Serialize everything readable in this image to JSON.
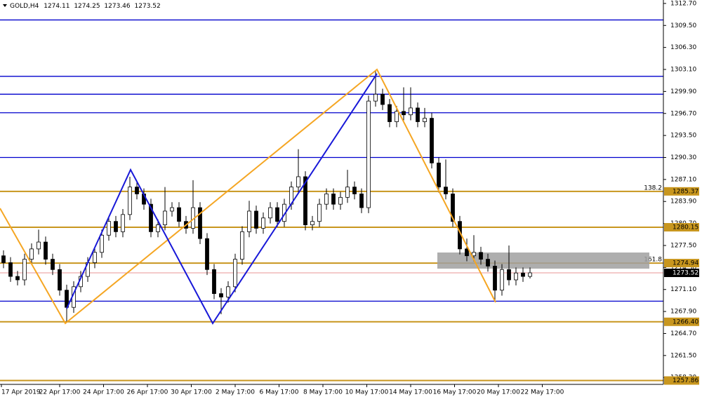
{
  "chart_data": {
    "type": "candlestick",
    "symbol": "GOLD,H4",
    "ohlc": [
      1274.11,
      1274.25,
      1273.46,
      1273.52
    ],
    "ylim": [
      1257.3,
      1313.2
    ],
    "yticks": [
      {
        "value": 1312.7,
        "label": "1312.70"
      },
      {
        "value": 1309.5,
        "label": "1309.50"
      },
      {
        "value": 1306.3,
        "label": "1306.30"
      },
      {
        "value": 1303.1,
        "label": "1303.10"
      },
      {
        "value": 1299.9,
        "label": "1299.90"
      },
      {
        "value": 1296.7,
        "label": "1296.70"
      },
      {
        "value": 1293.5,
        "label": "1293.50"
      },
      {
        "value": 1290.3,
        "label": "1290.30"
      },
      {
        "value": 1287.1,
        "label": "1287.10"
      },
      {
        "value": 1283.9,
        "label": "1283.90"
      },
      {
        "value": 1280.7,
        "label": "1280.70"
      },
      {
        "value": 1277.5,
        "label": "1277.50"
      },
      {
        "value": 1274.3,
        "label": "1274.30"
      },
      {
        "value": 1271.1,
        "label": "1271.10"
      },
      {
        "value": 1267.9,
        "label": "1267.90"
      },
      {
        "value": 1264.7,
        "label": "1264.70"
      },
      {
        "value": 1261.5,
        "label": "1261.50"
      },
      {
        "value": 1258.3,
        "label": "1258.30"
      }
    ],
    "x_labels": [
      "17 Apr 2019",
      "22 Apr 17:00",
      "24 Apr 17:00",
      "26 Apr 17:00",
      "30 Apr 17:00",
      "2 May 17:00",
      "6 May 17:00",
      "8 May 17:00",
      "10 May 17:00",
      "14 May 17:00",
      "16 May 17:00",
      "20 May 17:00",
      "22 May 17:00"
    ],
    "levels": [
      {
        "value": 1310.3,
        "color": "#0000cd"
      },
      {
        "value": 1302.1,
        "color": "#0000cd"
      },
      {
        "value": 1299.5,
        "color": "#0000cd"
      },
      {
        "value": 1296.8,
        "color": "#0000cd"
      },
      {
        "value": 1290.3,
        "color": "#0000cd"
      },
      {
        "value": 1269.4,
        "color": "#0000cd"
      },
      {
        "value": 1285.37,
        "color": "#c8961e",
        "fib": "138.2"
      },
      {
        "value": 1280.15,
        "color": "#c8961e"
      },
      {
        "value": 1274.94,
        "color": "#c8961e",
        "fib": "161.8"
      },
      {
        "value": 1266.4,
        "label": "1266.40",
        "color": "#c8961e"
      },
      {
        "value": 1257.86,
        "color": "#c8961e"
      }
    ],
    "current": 1273.52,
    "candles": [
      [
        1276,
        1276.8,
        1274.2,
        1275
      ],
      [
        1275,
        1275.8,
        1272.2,
        1273
      ],
      [
        1273,
        1273.8,
        1271.7,
        1272.5
      ],
      [
        1272.5,
        1276.3,
        1271.7,
        1275.5
      ],
      [
        1275.5,
        1277.8,
        1274.7,
        1277
      ],
      [
        1277,
        1279.8,
        1276.2,
        1278
      ],
      [
        1278,
        1278.8,
        1274.7,
        1275.5
      ],
      [
        1275.5,
        1276.3,
        1273.2,
        1274
      ],
      [
        1274,
        1274.8,
        1270.2,
        1271
      ],
      [
        1271,
        1271.8,
        1266.4,
        1268.5
      ],
      [
        1268.5,
        1272.3,
        1267.7,
        1271.5
      ],
      [
        1271.5,
        1273.8,
        1270.7,
        1273
      ],
      [
        1273,
        1275.8,
        1272.2,
        1275
      ],
      [
        1275,
        1277.3,
        1274.2,
        1276.5
      ],
      [
        1276.5,
        1279.8,
        1275.7,
        1279
      ],
      [
        1279,
        1281.8,
        1278.2,
        1281
      ],
      [
        1281,
        1281.8,
        1278.7,
        1279.5
      ],
      [
        1279.5,
        1282.8,
        1278.7,
        1282
      ],
      [
        1282,
        1287.5,
        1281.2,
        1286
      ],
      [
        1286,
        1286.8,
        1284.2,
        1285
      ],
      [
        1285,
        1285.8,
        1282.7,
        1283.5
      ],
      [
        1283.5,
        1284.3,
        1278.7,
        1279.5
      ],
      [
        1279.5,
        1281.3,
        1278.7,
        1280.5
      ],
      [
        1280.5,
        1286,
        1279.7,
        1282.5
      ],
      [
        1282.5,
        1283.8,
        1281.7,
        1283
      ],
      [
        1283,
        1283.8,
        1280.2,
        1281
      ],
      [
        1281,
        1281.8,
        1279.2,
        1280
      ],
      [
        1280,
        1287,
        1279.2,
        1283
      ],
      [
        1283,
        1283.8,
        1277.7,
        1278.5
      ],
      [
        1278.5,
        1279.3,
        1273.2,
        1274
      ],
      [
        1274,
        1274.8,
        1269.7,
        1270.5
      ],
      [
        1270.5,
        1271.3,
        1267.5,
        1270
      ],
      [
        1270,
        1272.3,
        1269.2,
        1271.5
      ],
      [
        1271.5,
        1276.3,
        1270.7,
        1275.5
      ],
      [
        1275.5,
        1280.3,
        1274.7,
        1279.5
      ],
      [
        1279.5,
        1284,
        1278.7,
        1282.5
      ],
      [
        1282.5,
        1283.3,
        1279.2,
        1280
      ],
      [
        1280,
        1282.3,
        1279.2,
        1281.5
      ],
      [
        1281.5,
        1283.8,
        1280.7,
        1283
      ],
      [
        1283,
        1283.8,
        1280.2,
        1281
      ],
      [
        1281,
        1284.3,
        1280.2,
        1283.5
      ],
      [
        1283.5,
        1286.8,
        1282.7,
        1286
      ],
      [
        1286,
        1291.5,
        1285.2,
        1287.5
      ],
      [
        1287.5,
        1288.3,
        1279.7,
        1280.5
      ],
      [
        1280.5,
        1281.8,
        1279.7,
        1281
      ],
      [
        1281,
        1284.3,
        1280.2,
        1283.5
      ],
      [
        1283.5,
        1285.8,
        1282.7,
        1285
      ],
      [
        1285,
        1285.8,
        1282.7,
        1283.5
      ],
      [
        1283.5,
        1285.3,
        1282.7,
        1284.5
      ],
      [
        1284.5,
        1288.5,
        1283.7,
        1286
      ],
      [
        1286,
        1286.8,
        1284.2,
        1285
      ],
      [
        1285,
        1285.8,
        1282.2,
        1283
      ],
      [
        1283,
        1299.3,
        1282.2,
        1298.5
      ],
      [
        1298.5,
        1303,
        1297.7,
        1299.5
      ],
      [
        1299.5,
        1300.3,
        1297.2,
        1298
      ],
      [
        1298,
        1298.8,
        1294.7,
        1295.5
      ],
      [
        1295.5,
        1297.8,
        1294.7,
        1297
      ],
      [
        1297,
        1300.5,
        1295.7,
        1296.5
      ],
      [
        1296.5,
        1300.5,
        1295.7,
        1297.5
      ],
      [
        1297.5,
        1298.3,
        1294.7,
        1295.5
      ],
      [
        1295.5,
        1297.5,
        1294.7,
        1296
      ],
      [
        1296,
        1296.8,
        1288.7,
        1289.5
      ],
      [
        1289.5,
        1290.3,
        1285.2,
        1286
      ],
      [
        1286,
        1290,
        1284.2,
        1285
      ],
      [
        1285,
        1285.8,
        1280.2,
        1281
      ],
      [
        1281,
        1281.8,
        1276.2,
        1277
      ],
      [
        1277,
        1278.5,
        1275.2,
        1276
      ],
      [
        1276,
        1279,
        1275.2,
        1276.5
      ],
      [
        1276.5,
        1277.3,
        1274.7,
        1275.5
      ],
      [
        1275.5,
        1276.3,
        1273.7,
        1274.5
      ],
      [
        1274.5,
        1275.3,
        1269.5,
        1271
      ],
      [
        1271,
        1274.8,
        1270.2,
        1274
      ],
      [
        1274,
        1277.5,
        1271.7,
        1272.5
      ],
      [
        1272.5,
        1274.3,
        1271.7,
        1273.5
      ],
      [
        1273.5,
        1274.3,
        1272.2,
        1273
      ],
      [
        1273,
        1274.3,
        1272.7,
        1273.52
      ]
    ]
  }
}
